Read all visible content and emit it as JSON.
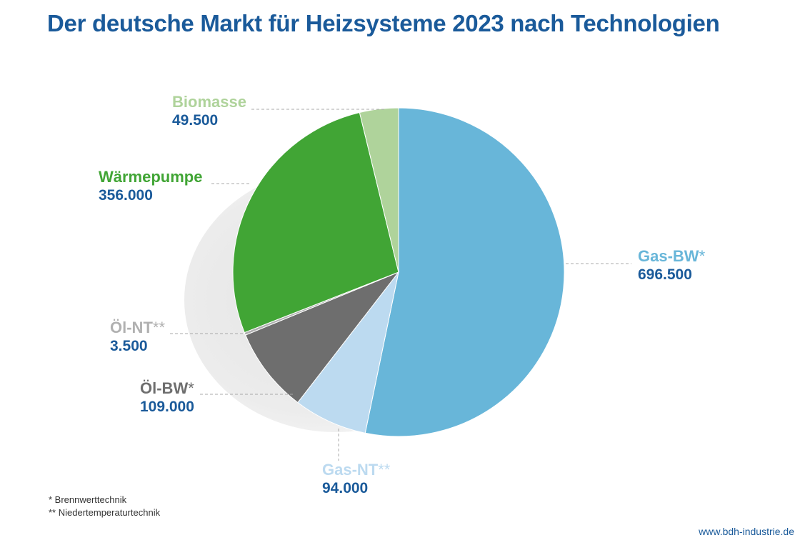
{
  "title": "Der deutsche Markt für Heizsysteme 2023 nach Technologien",
  "colors": {
    "title": "#1a5a9a",
    "value": "#1a5a9a",
    "gas_bw": "#68b6d9",
    "gas_nt": "#bcdaf0",
    "oel_bw": "#6e6e6e",
    "oel_nt": "#b0b0b0",
    "waermepumpe": "#41a535",
    "biomasse": "#afd39b"
  },
  "labels": {
    "biomasse": {
      "name": "Biomasse",
      "value": "49.500"
    },
    "waermepumpe": {
      "name": "Wärmepumpe",
      "value": "356.000"
    },
    "oel_nt": {
      "name": "Öl-NT",
      "suffix": "**",
      "value": "3.500"
    },
    "oel_bw": {
      "name": "Öl-BW",
      "suffix": "*",
      "value": "109.000"
    },
    "gas_nt": {
      "name": "Gas-NT",
      "suffix": "**",
      "value": "94.000"
    },
    "gas_bw": {
      "name": "Gas-BW",
      "suffix": "*",
      "value": "696.500"
    }
  },
  "footnotes": [
    "* Brennwerttechnik",
    "** Niedertemperaturtechnik"
  ],
  "source": "www.bdh-industrie.de",
  "chart_data": {
    "type": "pie",
    "title": "Der deutsche Markt für Heizsysteme 2023 nach Technologien",
    "categories": [
      "Gas-BW*",
      "Gas-NT**",
      "Öl-BW*",
      "Öl-NT**",
      "Wärmepumpe",
      "Biomasse"
    ],
    "values": [
      696500,
      94000,
      109000,
      3500,
      356000,
      49500
    ],
    "start_angle": "12 o'clock",
    "direction": "clockwise",
    "legend": "none (direct labels)"
  }
}
